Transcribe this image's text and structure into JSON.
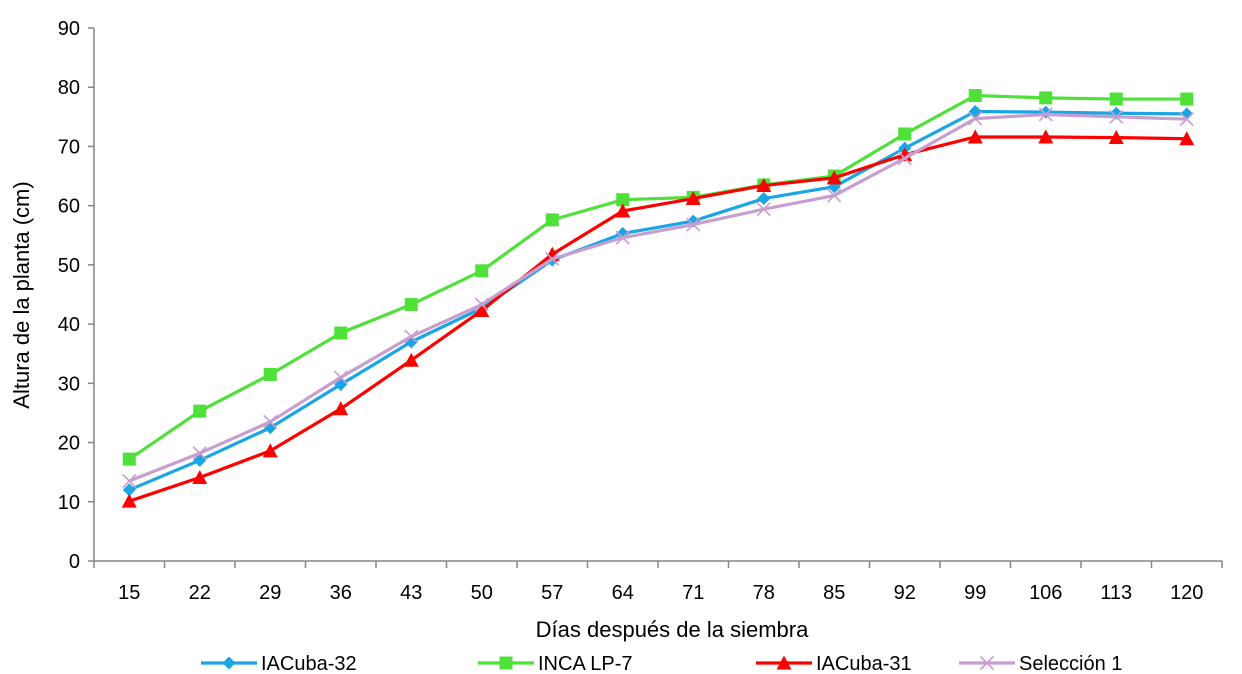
{
  "chart_data": {
    "type": "line",
    "title": "",
    "xlabel": "Días después de la siembra",
    "ylabel": "Altura de la planta (cm)",
    "categories": [
      "15",
      "22",
      "29",
      "36",
      "43",
      "50",
      "57",
      "64",
      "71",
      "78",
      "85",
      "92",
      "99",
      "106",
      "113",
      "120"
    ],
    "ylim": [
      0,
      90
    ],
    "yticks": [
      "0",
      "10",
      "20",
      "30",
      "40",
      "50",
      "60",
      "70",
      "80",
      "90"
    ],
    "grid": false,
    "legend_position": "bottom",
    "series": [
      {
        "name": "IACuba-32",
        "color": "#1aa6e4",
        "marker": "diamond",
        "values": [
          12.0,
          17.0,
          22.5,
          29.8,
          37.0,
          42.7,
          50.8,
          55.3,
          57.4,
          61.2,
          63.2,
          69.7,
          75.9,
          75.8,
          75.6,
          75.5
        ]
      },
      {
        "name": "INCA LP-7",
        "color": "#4fe03a",
        "marker": "square",
        "values": [
          17.2,
          25.3,
          31.5,
          38.5,
          43.3,
          49.0,
          57.6,
          61.0,
          61.4,
          63.5,
          65.0,
          72.1,
          78.6,
          78.2,
          78.0,
          78.0
        ]
      },
      {
        "name": "IACuba-31",
        "color": "#ff0000",
        "marker": "triangle",
        "values": [
          10.1,
          14.1,
          18.6,
          25.7,
          33.9,
          42.3,
          51.8,
          59.1,
          61.2,
          63.4,
          64.7,
          68.6,
          71.6,
          71.6,
          71.5,
          71.3
        ]
      },
      {
        "name": "Selección 1",
        "color": "#c89ed0",
        "marker": "x",
        "values": [
          13.5,
          18.2,
          23.5,
          31.0,
          37.9,
          43.3,
          51.0,
          54.6,
          56.8,
          59.4,
          61.7,
          68.0,
          74.7,
          75.4,
          75.0,
          74.6
        ]
      }
    ]
  }
}
